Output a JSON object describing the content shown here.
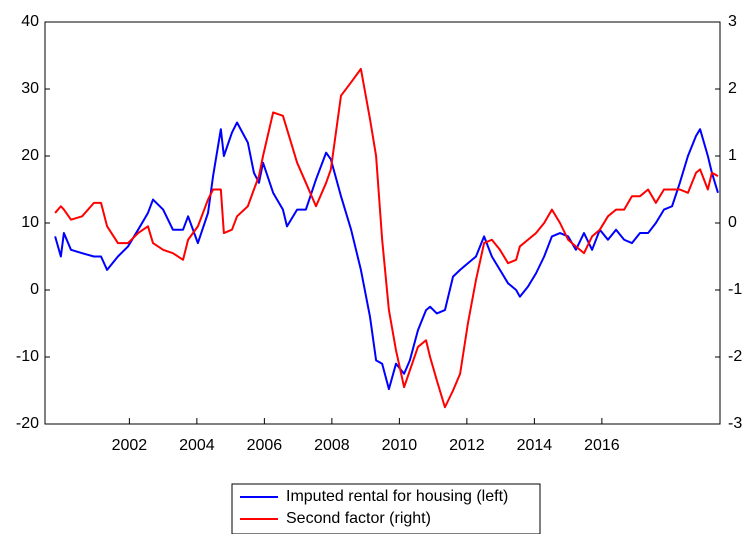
{
  "chart_data": {
    "type": "line",
    "x": [
      1999.8,
      1999.97,
      2000.06,
      2000.27,
      2000.6,
      2000.95,
      2001.16,
      2001.34,
      2001.66,
      2001.96,
      2002.26,
      2002.55,
      2002.7,
      2003.0,
      2003.29,
      2003.59,
      2003.74,
      2004.03,
      2004.33,
      2004.48,
      2004.71,
      2004.8,
      2005.04,
      2005.19,
      2005.51,
      2005.69,
      2005.84,
      2005.96,
      2006.26,
      2006.55,
      2006.67,
      2006.97,
      2007.23,
      2007.53,
      2007.83,
      2007.97,
      2008.27,
      2008.57,
      2008.86,
      2009.13,
      2009.31,
      2009.49,
      2009.69,
      2009.9,
      2010.14,
      2010.31,
      2010.55,
      2010.79,
      2010.91,
      2011.11,
      2011.35,
      2011.59,
      2011.8,
      2012.03,
      2012.27,
      2012.51,
      2012.74,
      2012.98,
      2013.22,
      2013.46,
      2013.57,
      2013.81,
      2014.05,
      2014.29,
      2014.52,
      2014.76,
      2015.0,
      2015.23,
      2015.47,
      2015.71,
      2015.94,
      2016.18,
      2016.42,
      2016.66,
      2016.89,
      2017.13,
      2017.37,
      2017.6,
      2017.84,
      2018.08,
      2018.31,
      2018.55,
      2018.79,
      2018.91,
      2019.14,
      2019.26,
      2019.44
    ],
    "series": [
      {
        "name": "Imputed rental for housing (left)",
        "color": "#0000ff",
        "axis": "y",
        "values": [
          8,
          5,
          8.5,
          6,
          5.5,
          5,
          5,
          3,
          5,
          6.5,
          9,
          11.5,
          13.5,
          12,
          9,
          9,
          11,
          7,
          11.5,
          17,
          24,
          20,
          23.5,
          25,
          22,
          17.5,
          16,
          19,
          14.5,
          12,
          9.5,
          12,
          12,
          16.5,
          20.5,
          19.5,
          14,
          9,
          3,
          -4,
          -10.5,
          -11,
          -14.8,
          -11,
          -12.5,
          -10.5,
          -6,
          -3,
          -2.5,
          -3.5,
          -3,
          2,
          3,
          4,
          5,
          8,
          5,
          3,
          1,
          0,
          -1,
          0.5,
          2.5,
          5,
          8,
          8.5,
          8,
          6,
          8.5,
          6,
          9,
          7.5,
          9,
          7.5,
          7,
          8.5,
          8.5,
          10,
          12,
          12.5,
          16,
          20,
          23,
          24,
          20,
          17.5,
          14.5
        ]
      },
      {
        "name": "Second factor (right)",
        "color": "#ff0000",
        "axis": "y2",
        "values": [
          0.15,
          0.25,
          0.2,
          0.05,
          0.1,
          0.3,
          0.3,
          -0.05,
          -0.3,
          -0.3,
          -0.15,
          -0.05,
          -0.3,
          -0.4,
          -0.45,
          -0.55,
          -0.25,
          -0.05,
          0.35,
          0.5,
          0.5,
          -0.15,
          -0.1,
          0.1,
          0.25,
          0.5,
          0.7,
          1.0,
          1.65,
          1.6,
          1.4,
          0.9,
          0.6,
          0.25,
          0.6,
          0.8,
          1.9,
          2.1,
          2.3,
          1.55,
          1.0,
          -0.25,
          -1.3,
          -1.9,
          -2.45,
          -2.2,
          -1.85,
          -1.75,
          -2.0,
          -2.35,
          -2.75,
          -2.5,
          -2.25,
          -1.5,
          -0.85,
          -0.3,
          -0.25,
          -0.4,
          -0.6,
          -0.55,
          -0.35,
          -0.25,
          -0.15,
          0.0,
          0.2,
          0.0,
          -0.25,
          -0.35,
          -0.45,
          -0.2,
          -0.1,
          0.1,
          0.2,
          0.2,
          0.4,
          0.4,
          0.5,
          0.3,
          0.5,
          0.5,
          0.5,
          0.45,
          0.75,
          0.8,
          0.5,
          0.75,
          0.7
        ]
      }
    ],
    "xlim": [
      1999.5,
      2019.5
    ],
    "xticks": [
      2002,
      2004,
      2006,
      2008,
      2010,
      2012,
      2014,
      2016
    ],
    "ylim": [
      -20,
      40
    ],
    "yticks": [
      -20,
      -10,
      0,
      10,
      20,
      30,
      40
    ],
    "y2lim": [
      -3,
      3
    ],
    "y2ticks": [
      -3,
      -2,
      -1,
      0,
      1,
      2,
      3
    ],
    "grid": false,
    "legend": "bottom"
  }
}
